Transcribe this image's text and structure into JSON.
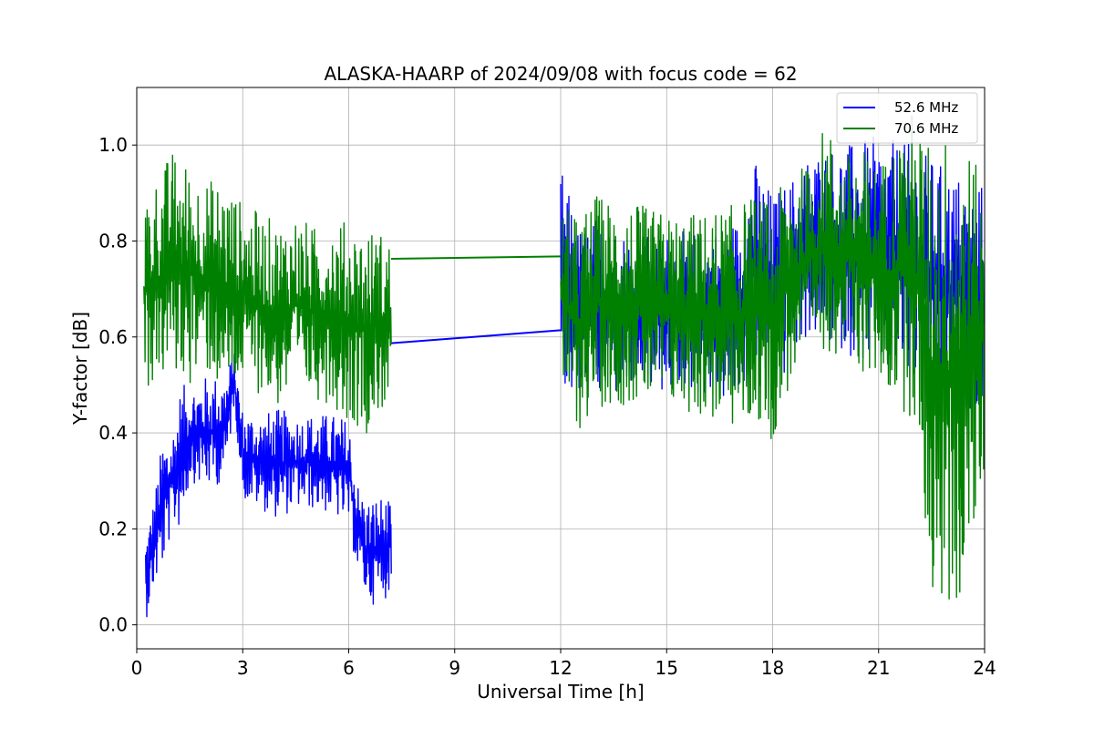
{
  "chart_data": {
    "type": "line",
    "title": "ALASKA-HAARP of 2024/09/08 with focus code = 62",
    "xlabel": "Universal Time [h]",
    "ylabel": "Y-factor [dB]",
    "xlim": [
      0,
      24
    ],
    "ylim": [
      -0.05,
      1.12
    ],
    "xticks": [
      0,
      3,
      6,
      9,
      12,
      15,
      18,
      21,
      24
    ],
    "xtick_labels": [
      "0",
      "3",
      "6",
      "9",
      "12",
      "15",
      "18",
      "21",
      "24"
    ],
    "yticks": [
      0.0,
      0.2,
      0.4,
      0.6,
      0.8,
      1.0
    ],
    "ytick_labels": [
      "0.0",
      "0.2",
      "0.4",
      "0.6",
      "0.8",
      "1.0"
    ],
    "grid": true,
    "legend_position": "top-right",
    "series": [
      {
        "name": "52.6 MHz",
        "color": "#0000ff",
        "x": [
          0.25,
          0.5,
          0.75,
          1.0,
          1.25,
          1.5,
          2.0,
          2.5,
          2.75,
          3.0,
          3.5,
          4.0,
          4.5,
          5.0,
          5.5,
          6.0,
          6.25,
          6.5,
          6.75,
          7.0,
          7.2,
          12.0,
          12.5,
          13.0,
          14.0,
          15.0,
          16.0,
          17.0,
          17.5,
          18.0,
          18.5,
          19.0,
          19.5,
          20.0,
          21.0,
          22.0,
          23.0,
          24.0
        ],
        "low": [
          0.01,
          0.08,
          0.12,
          0.2,
          0.2,
          0.3,
          0.28,
          0.3,
          0.46,
          0.26,
          0.24,
          0.22,
          0.24,
          0.24,
          0.23,
          0.2,
          0.1,
          0.05,
          0.04,
          0.05,
          0.08,
          0.5,
          0.45,
          0.46,
          0.48,
          0.48,
          0.48,
          0.45,
          0.55,
          0.45,
          0.55,
          0.6,
          0.58,
          0.57,
          0.52,
          0.5,
          0.45,
          0.45
        ],
        "high": [
          0.19,
          0.27,
          0.4,
          0.4,
          0.5,
          0.5,
          0.52,
          0.52,
          0.57,
          0.45,
          0.44,
          0.45,
          0.44,
          0.44,
          0.44,
          0.43,
          0.3,
          0.26,
          0.27,
          0.27,
          0.25,
          0.96,
          0.83,
          0.85,
          0.82,
          0.82,
          0.82,
          0.85,
          0.97,
          0.9,
          0.93,
          0.98,
          1.0,
          1.0,
          1.02,
          1.0,
          0.95,
          0.92
        ]
      },
      {
        "name": "70.6 MHz",
        "color": "#008000",
        "x": [
          0.2,
          0.5,
          1.0,
          1.5,
          2.0,
          2.5,
          3.0,
          3.5,
          4.0,
          4.5,
          5.0,
          5.5,
          6.0,
          6.5,
          7.0,
          7.2,
          12.0,
          12.5,
          13.0,
          14.0,
          15.0,
          16.0,
          17.0,
          17.5,
          18.0,
          18.5,
          19.0,
          19.5,
          20.0,
          20.5,
          21.0,
          22.0,
          22.5,
          23.0,
          23.5,
          24.0
        ],
        "low": [
          0.48,
          0.5,
          0.52,
          0.5,
          0.52,
          0.47,
          0.5,
          0.48,
          0.45,
          0.48,
          0.47,
          0.46,
          0.42,
          0.4,
          0.45,
          0.48,
          0.48,
          0.4,
          0.45,
          0.46,
          0.45,
          0.43,
          0.4,
          0.42,
          0.38,
          0.5,
          0.55,
          0.57,
          0.56,
          0.52,
          0.5,
          0.42,
          0.05,
          0.0,
          0.07,
          0.31
        ],
        "high": [
          0.9,
          0.93,
          0.99,
          0.96,
          0.93,
          0.93,
          0.88,
          0.86,
          0.84,
          0.86,
          0.83,
          0.85,
          0.84,
          0.83,
          0.82,
          0.8,
          0.88,
          0.85,
          0.9,
          0.88,
          0.86,
          0.86,
          0.88,
          0.9,
          0.88,
          0.95,
          0.96,
          1.05,
          0.98,
          1.0,
          0.96,
          1.08,
          1.0,
          1.05,
          1.02,
          0.9
        ]
      }
    ],
    "connector_segments": [
      {
        "series": "52.6 MHz",
        "x": [
          7.2,
          12.0
        ],
        "y": [
          0.587,
          0.614
        ]
      },
      {
        "series": "70.6 MHz",
        "x": [
          7.2,
          12.0
        ],
        "y": [
          0.763,
          0.768
        ]
      }
    ]
  }
}
